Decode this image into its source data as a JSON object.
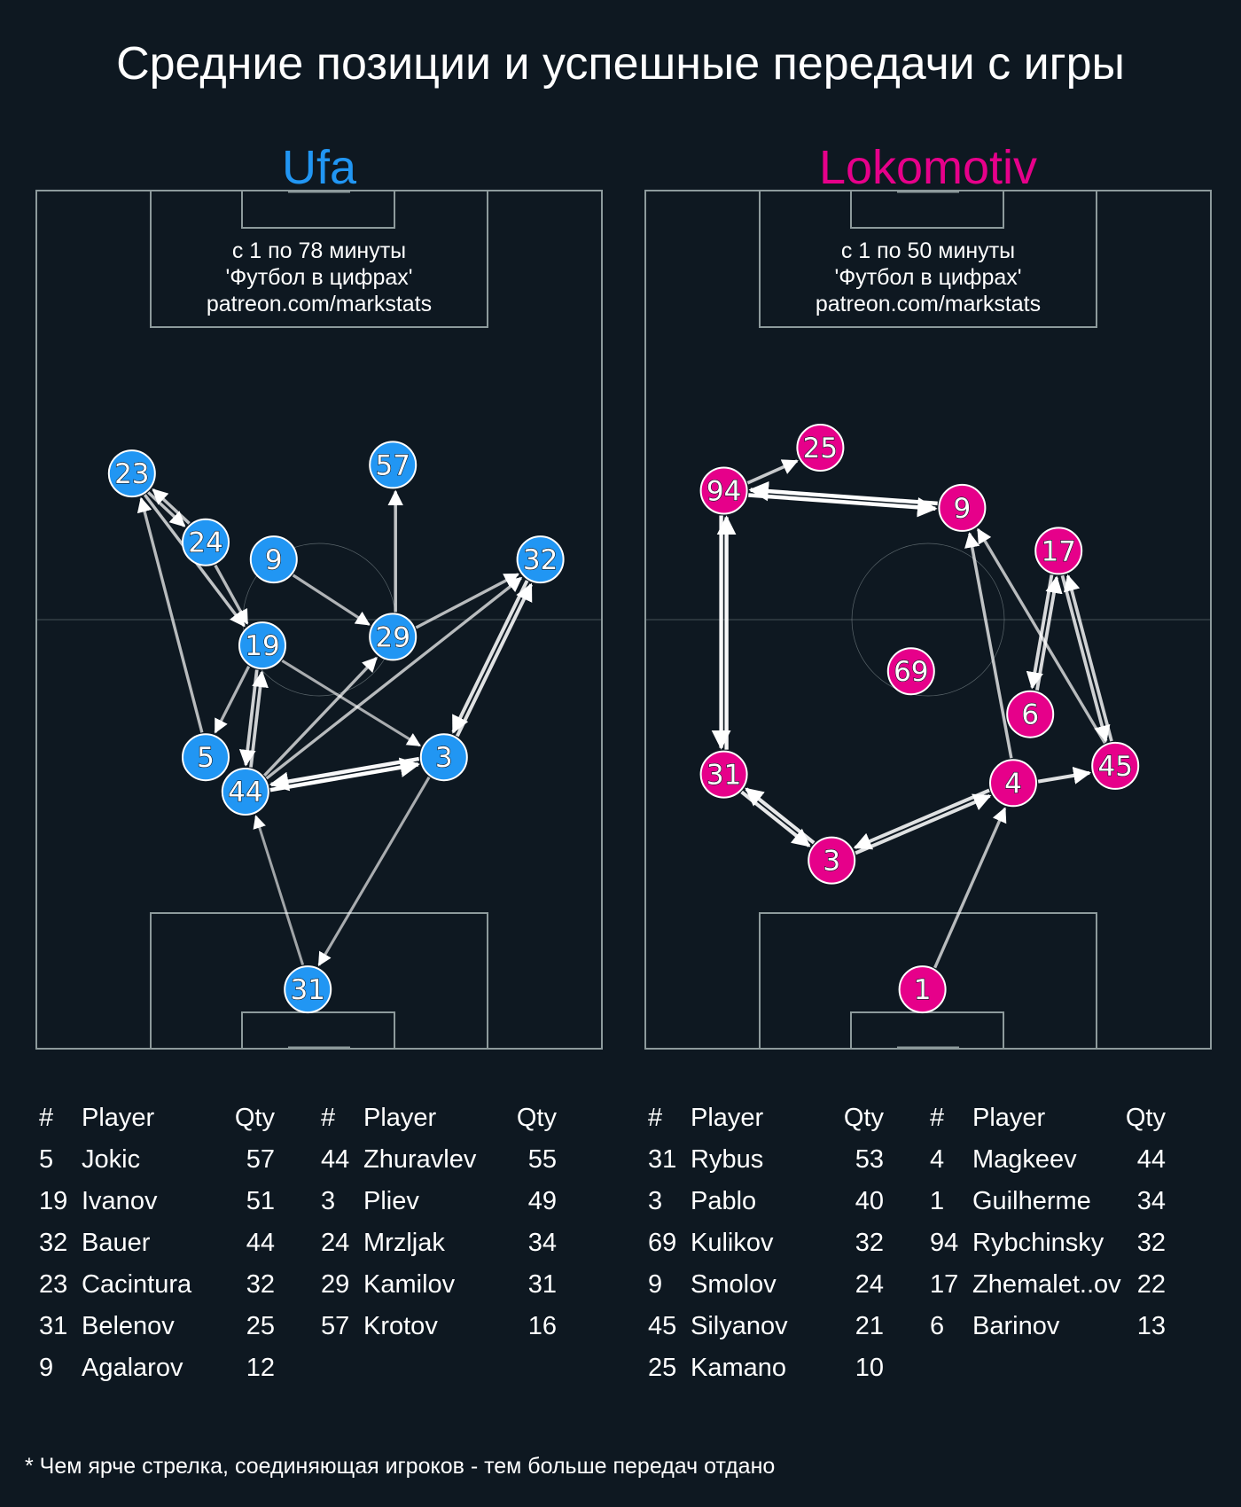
{
  "title": "Средние позиции и успешные передачи с игры",
  "footnote": "* Чем ярче стрелка, соединяющая игроков - тем больше передач отдано",
  "colors": {
    "background": "#0e1821",
    "ufa": "#2196f3",
    "lokomotiv": "#e6008a",
    "pitch_lines": "#8d9a9c"
  },
  "chart_data": [
    {
      "type": "pass-network",
      "team": "Ufa",
      "color": "#2196f3",
      "subtitle": [
        "с 1 по 78 минуты",
        "'Футбол в цифрах'",
        "patreon.com/markstats"
      ],
      "positions": [
        {
          "num": "23",
          "x": 17,
          "y": 67
        },
        {
          "num": "57",
          "x": 63,
          "y": 68
        },
        {
          "num": "24",
          "x": 30,
          "y": 59
        },
        {
          "num": "9",
          "x": 42,
          "y": 57
        },
        {
          "num": "32",
          "x": 89,
          "y": 57
        },
        {
          "num": "19",
          "x": 40,
          "y": 47
        },
        {
          "num": "29",
          "x": 63,
          "y": 48
        },
        {
          "num": "5",
          "x": 30,
          "y": 34
        },
        {
          "num": "44",
          "x": 37,
          "y": 30
        },
        {
          "num": "3",
          "x": 72,
          "y": 34
        },
        {
          "num": "31",
          "x": 48,
          "y": 7
        }
      ],
      "passes": [
        {
          "from": "44",
          "to": "3",
          "intensity": 1.0
        },
        {
          "from": "3",
          "to": "44",
          "intensity": 0.95
        },
        {
          "from": "3",
          "to": "32",
          "intensity": 0.8
        },
        {
          "from": "32",
          "to": "3",
          "intensity": 0.8
        },
        {
          "from": "19",
          "to": "44",
          "intensity": 0.7
        },
        {
          "from": "44",
          "to": "19",
          "intensity": 0.7
        },
        {
          "from": "44",
          "to": "32",
          "intensity": 0.55
        },
        {
          "from": "29",
          "to": "32",
          "intensity": 0.55
        },
        {
          "from": "44",
          "to": "29",
          "intensity": 0.55
        },
        {
          "from": "29",
          "to": "57",
          "intensity": 0.6
        },
        {
          "from": "23",
          "to": "24",
          "intensity": 0.6
        },
        {
          "from": "24",
          "to": "23",
          "intensity": 0.6
        },
        {
          "from": "23",
          "to": "19",
          "intensity": 0.6
        },
        {
          "from": "5",
          "to": "23",
          "intensity": 0.55
        },
        {
          "from": "24",
          "to": "19",
          "intensity": 0.55
        },
        {
          "from": "19",
          "to": "5",
          "intensity": 0.5
        },
        {
          "from": "9",
          "to": "29",
          "intensity": 0.5
        },
        {
          "from": "19",
          "to": "3",
          "intensity": 0.45
        },
        {
          "from": "3",
          "to": "31",
          "intensity": 0.45
        },
        {
          "from": "31",
          "to": "44",
          "intensity": 0.4
        }
      ],
      "roster": [
        {
          "num": "5",
          "player": "Jokic",
          "qty": 57
        },
        {
          "num": "19",
          "player": "Ivanov",
          "qty": 51
        },
        {
          "num": "32",
          "player": "Bauer",
          "qty": 44
        },
        {
          "num": "23",
          "player": "Cacintura",
          "qty": 32
        },
        {
          "num": "31",
          "player": "Belenov",
          "qty": 25
        },
        {
          "num": "9",
          "player": "Agalarov",
          "qty": 12
        },
        {
          "num": "44",
          "player": "Zhuravlev",
          "qty": 55
        },
        {
          "num": "3",
          "player": "Pliev",
          "qty": 49
        },
        {
          "num": "24",
          "player": "Mrzljak",
          "qty": 34
        },
        {
          "num": "29",
          "player": "Kamilov",
          "qty": 31
        },
        {
          "num": "57",
          "player": "Krotov",
          "qty": 16
        }
      ]
    },
    {
      "type": "pass-network",
      "team": "Lokomotiv",
      "color": "#e6008a",
      "subtitle": [
        "с 1 по 50 минуты",
        "'Футбол в цифрах'",
        "patreon.com/markstats"
      ],
      "positions": [
        {
          "num": "25",
          "x": 31,
          "y": 70
        },
        {
          "num": "94",
          "x": 14,
          "y": 65
        },
        {
          "num": "9",
          "x": 56,
          "y": 63
        },
        {
          "num": "17",
          "x": 73,
          "y": 58
        },
        {
          "num": "69",
          "x": 47,
          "y": 44
        },
        {
          "num": "6",
          "x": 68,
          "y": 39
        },
        {
          "num": "31",
          "x": 14,
          "y": 32
        },
        {
          "num": "4",
          "x": 65,
          "y": 31
        },
        {
          "num": "45",
          "x": 83,
          "y": 33
        },
        {
          "num": "3",
          "x": 33,
          "y": 22
        },
        {
          "num": "1",
          "x": 49,
          "y": 7
        }
      ],
      "passes": [
        {
          "from": "94",
          "to": "9",
          "intensity": 1.0
        },
        {
          "from": "9",
          "to": "94",
          "intensity": 1.0
        },
        {
          "from": "31",
          "to": "94",
          "intensity": 0.95
        },
        {
          "from": "94",
          "to": "31",
          "intensity": 0.95
        },
        {
          "from": "31",
          "to": "3",
          "intensity": 0.85
        },
        {
          "from": "3",
          "to": "31",
          "intensity": 0.85
        },
        {
          "from": "3",
          "to": "4",
          "intensity": 0.8
        },
        {
          "from": "4",
          "to": "3",
          "intensity": 0.8
        },
        {
          "from": "4",
          "to": "45",
          "intensity": 0.8
        },
        {
          "from": "6",
          "to": "17",
          "intensity": 0.75
        },
        {
          "from": "17",
          "to": "6",
          "intensity": 0.75
        },
        {
          "from": "45",
          "to": "17",
          "intensity": 0.7
        },
        {
          "from": "17",
          "to": "45",
          "intensity": 0.7
        },
        {
          "from": "4",
          "to": "9",
          "intensity": 0.6
        },
        {
          "from": "45",
          "to": "9",
          "intensity": 0.55
        },
        {
          "from": "1",
          "to": "4",
          "intensity": 0.55
        },
        {
          "from": "94",
          "to": "25",
          "intensity": 0.65
        }
      ],
      "roster": [
        {
          "num": "31",
          "player": "Rybus",
          "qty": 53
        },
        {
          "num": "3",
          "player": "Pablo",
          "qty": 40
        },
        {
          "num": "69",
          "player": "Kulikov",
          "qty": 32
        },
        {
          "num": "9",
          "player": "Smolov",
          "qty": 24
        },
        {
          "num": "45",
          "player": "Silyanov",
          "qty": 21
        },
        {
          "num": "25",
          "player": "Kamano",
          "qty": 10
        },
        {
          "num": "4",
          "player": "Magkeev",
          "qty": 44
        },
        {
          "num": "1",
          "player": "Guilherme",
          "qty": 34
        },
        {
          "num": "94",
          "player": "Rybchinsky",
          "qty": 32
        },
        {
          "num": "17",
          "player": "Zhemalet..ov",
          "qty": 22
        },
        {
          "num": "6",
          "player": "Barinov",
          "qty": 13
        }
      ]
    }
  ],
  "table_headers": {
    "num": "#",
    "player": "Player",
    "qty": "Qty"
  }
}
